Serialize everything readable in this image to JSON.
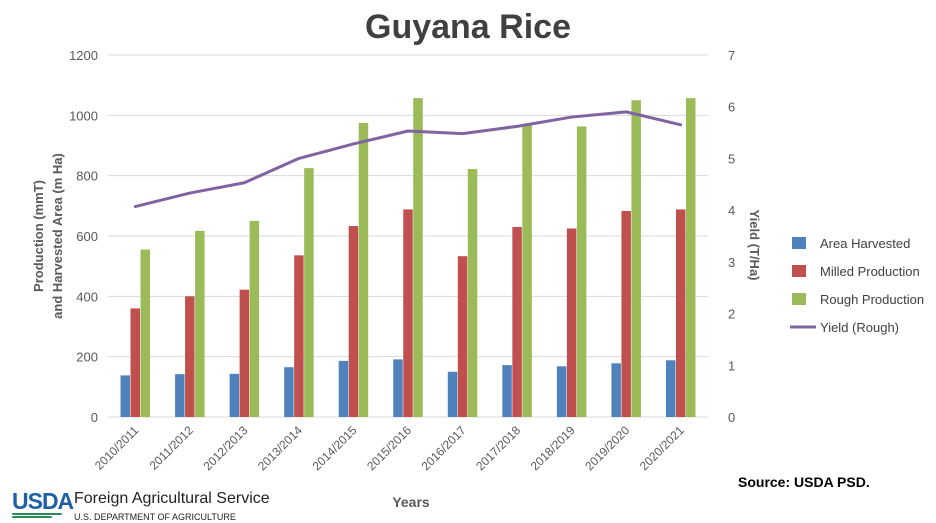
{
  "chart_data": {
    "type": "bar",
    "title": "Guyana Rice",
    "xlabel": "Years",
    "ylabel_left": [
      "Production (mmT)",
      "and Harvested Area (m Ha)"
    ],
    "ylabel_right": "Yield (T/Ha)",
    "ylim_left": [
      0,
      1200
    ],
    "yticks_left": [
      "0",
      "200",
      "400",
      "600",
      "800",
      "1000",
      "1200"
    ],
    "ylim_right": [
      0,
      7
    ],
    "yticks_right": [
      "0",
      "1",
      "2",
      "3",
      "4",
      "5",
      "6",
      "7"
    ],
    "grid": true,
    "legend_position": "right",
    "categories": [
      "2010/2011",
      "2011/2012",
      "2012/2013",
      "2013/2014",
      "2014/2015",
      "2015/2016",
      "2016/2017",
      "2017/2018",
      "2018/2019",
      "2019/2020",
      "2020/2021"
    ],
    "series": [
      {
        "name": "Area Harvested",
        "kind": "bar",
        "color": "#4f81bd",
        "values": [
          138,
          142,
          143,
          165,
          186,
          191,
          150,
          172,
          168,
          178,
          188
        ]
      },
      {
        "name": "Milled Production",
        "kind": "bar",
        "color": "#c0504d",
        "values": [
          360,
          400,
          422,
          536,
          633,
          688,
          533,
          630,
          625,
          683,
          688
        ]
      },
      {
        "name": "Rough Production",
        "kind": "bar",
        "color": "#9bbb59",
        "values": [
          555,
          617,
          650,
          825,
          975,
          1057,
          822,
          968,
          963,
          1050,
          1057
        ]
      },
      {
        "name": "Yield (Rough)",
        "kind": "line",
        "axis": "right",
        "color": "#8064a2",
        "values": [
          4.07,
          4.33,
          4.53,
          5.0,
          5.28,
          5.53,
          5.48,
          5.62,
          5.8,
          5.9,
          5.65
        ]
      }
    ]
  },
  "source_text": "Source:  USDA PSD.",
  "footer": {
    "logo_text": "USDA",
    "agency": "Foreign Agricultural Service",
    "department": "U.S. DEPARTMENT OF AGRICULTURE"
  }
}
